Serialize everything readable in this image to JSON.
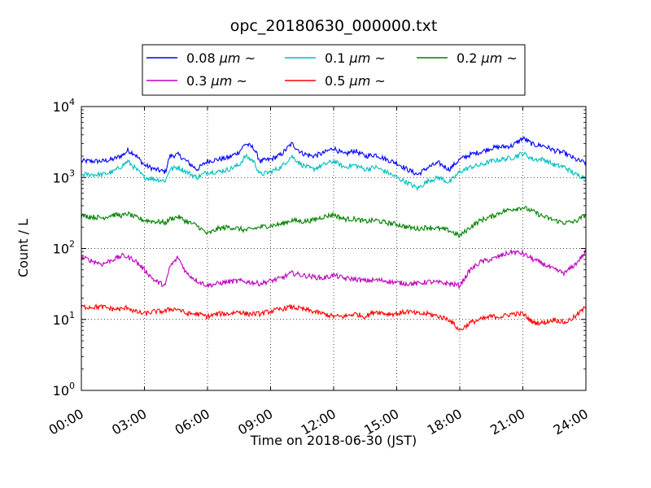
{
  "chart_data": {
    "type": "line",
    "title": "opc_20180630_000000.txt",
    "xlabel": "Time on 2018-06-30 (JST)",
    "ylabel": "Count / L",
    "x_ticks": [
      "00:00",
      "03:00",
      "06:00",
      "09:00",
      "12:00",
      "15:00",
      "18:00",
      "21:00",
      "24:00"
    ],
    "y_ticks": [
      {
        "value": 1,
        "base": "10",
        "exp": "0"
      },
      {
        "value": 10,
        "base": "10",
        "exp": "1"
      },
      {
        "value": 100,
        "base": "10",
        "exp": "2"
      },
      {
        "value": 1000,
        "base": "10",
        "exp": "3"
      },
      {
        "value": 10000,
        "base": "10",
        "exp": "4"
      }
    ],
    "xlim_hours": [
      0,
      24
    ],
    "ylim": [
      1,
      10000
    ],
    "yscale": "log",
    "grid": true,
    "legend_position": "top",
    "series": [
      {
        "name": "0.08 μm ~",
        "label_main": "0.08 ",
        "label_unit": "μm",
        "label_tail": " ~",
        "color": "#0000ff",
        "x": [
          0,
          1,
          1.5,
          2,
          2.2,
          2.5,
          3,
          3.5,
          4,
          4.2,
          4.6,
          5,
          5.5,
          6,
          6.5,
          7,
          7.5,
          7.8,
          8.2,
          8.5,
          9,
          9.5,
          10,
          10.5,
          11,
          11.5,
          12,
          12.5,
          13,
          13.5,
          14,
          14.5,
          15,
          15.5,
          16,
          16.5,
          17,
          17.5,
          18,
          18.5,
          19,
          19.5,
          20,
          20.5,
          21,
          21.5,
          22,
          22.5,
          23,
          23.5,
          24
        ],
        "y": [
          1700,
          1700,
          1800,
          2100,
          2400,
          2200,
          1500,
          1300,
          1200,
          2000,
          2100,
          1700,
          1300,
          1700,
          1800,
          1900,
          2300,
          3000,
          2600,
          1700,
          1800,
          2100,
          3000,
          2200,
          2000,
          2200,
          2600,
          2100,
          2400,
          2000,
          2100,
          1800,
          1600,
          1300,
          1100,
          1400,
          1600,
          1300,
          1800,
          2100,
          2300,
          2600,
          2700,
          2800,
          3600,
          2900,
          2800,
          2400,
          2200,
          1800,
          1600
        ]
      },
      {
        "name": "0.1 μm ~",
        "label_main": "0.1 ",
        "label_unit": "μm",
        "label_tail": " ~",
        "color": "#00bfbf",
        "x": [
          0,
          1,
          1.5,
          2,
          2.2,
          2.5,
          3,
          3.5,
          4,
          4.2,
          4.6,
          5,
          5.5,
          6,
          6.5,
          7,
          7.5,
          7.8,
          8.2,
          8.5,
          9,
          9.5,
          10,
          10.5,
          11,
          11.5,
          12,
          12.5,
          13,
          13.5,
          14,
          14.5,
          15,
          15.5,
          16,
          16.5,
          17,
          17.5,
          18,
          18.5,
          19,
          19.5,
          20,
          20.5,
          21,
          21.5,
          22,
          22.5,
          23,
          23.5,
          24
        ],
        "y": [
          1100,
          1100,
          1200,
          1500,
          1700,
          1400,
          1000,
          950,
          900,
          1300,
          1400,
          1200,
          1000,
          1200,
          1200,
          1300,
          1500,
          2000,
          1700,
          1100,
          1200,
          1400,
          2000,
          1500,
          1300,
          1500,
          1700,
          1400,
          1500,
          1300,
          1400,
          1200,
          1000,
          850,
          700,
          900,
          1000,
          850,
          1200,
          1400,
          1500,
          1700,
          1800,
          1900,
          2200,
          1800,
          1800,
          1500,
          1400,
          1100,
          1000
        ]
      },
      {
        "name": "0.2 μm ~",
        "label_main": "0.2 ",
        "label_unit": "μm",
        "label_tail": " ~",
        "color": "#008000",
        "x": [
          0,
          1,
          1.5,
          2,
          2.2,
          2.5,
          3,
          3.5,
          4,
          4.2,
          4.6,
          5,
          5.5,
          6,
          6.5,
          7,
          7.5,
          7.8,
          8.2,
          8.5,
          9,
          9.5,
          10,
          10.5,
          11,
          11.5,
          12,
          12.5,
          13,
          13.5,
          14,
          14.5,
          15,
          15.5,
          16,
          16.5,
          17,
          17.5,
          18,
          18.5,
          19,
          19.5,
          20,
          20.5,
          21,
          21.5,
          22,
          22.5,
          23,
          23.5,
          24
        ],
        "y": [
          290,
          270,
          300,
          290,
          310,
          280,
          250,
          240,
          230,
          260,
          280,
          240,
          210,
          160,
          190,
          200,
          190,
          180,
          190,
          200,
          210,
          220,
          250,
          240,
          250,
          280,
          300,
          260,
          260,
          240,
          250,
          230,
          220,
          200,
          190,
          200,
          190,
          180,
          150,
          200,
          250,
          280,
          330,
          360,
          380,
          330,
          280,
          250,
          230,
          240,
          300
        ]
      },
      {
        "name": "0.3 μm ~",
        "label_main": "0.3 ",
        "label_unit": "μm",
        "label_tail": " ~",
        "color": "#bf00bf",
        "x": [
          0,
          1,
          1.5,
          2,
          2.2,
          2.5,
          3,
          3.5,
          4,
          4.2,
          4.6,
          5,
          5.5,
          6,
          6.5,
          7,
          7.5,
          7.8,
          8.2,
          8.5,
          9,
          9.5,
          10,
          10.5,
          11,
          11.5,
          12,
          12.5,
          13,
          13.5,
          14,
          14.5,
          15,
          15.5,
          16,
          16.5,
          17,
          17.5,
          18,
          18.5,
          19,
          19.5,
          20,
          20.5,
          21,
          21.5,
          22,
          22.5,
          23,
          23.5,
          24
        ],
        "y": [
          75,
          60,
          70,
          80,
          75,
          70,
          50,
          35,
          30,
          55,
          75,
          45,
          35,
          30,
          32,
          34,
          35,
          34,
          33,
          32,
          35,
          38,
          45,
          42,
          40,
          38,
          42,
          38,
          37,
          35,
          36,
          35,
          33,
          32,
          32,
          34,
          33,
          32,
          30,
          50,
          65,
          70,
          80,
          90,
          85,
          70,
          60,
          50,
          45,
          60,
          90
        ]
      },
      {
        "name": "0.5 μm ~",
        "label_main": "0.5 ",
        "label_unit": "μm",
        "label_tail": " ~",
        "color": "#ff0000",
        "x": [
          0,
          1,
          1.5,
          2,
          2.2,
          2.5,
          3,
          3.5,
          4,
          4.2,
          4.6,
          5,
          5.5,
          6,
          6.5,
          7,
          7.5,
          7.8,
          8.2,
          8.5,
          9,
          9.5,
          10,
          10.5,
          11,
          11.5,
          12,
          12.5,
          13,
          13.5,
          14,
          14.5,
          15,
          15.5,
          16,
          16.5,
          17,
          17.5,
          18,
          18.5,
          19,
          19.5,
          20,
          20.5,
          21,
          21.5,
          22,
          22.5,
          23,
          23.5,
          24
        ],
        "y": [
          15,
          15,
          14,
          14,
          15,
          13,
          12,
          13,
          13,
          14,
          14,
          12,
          12,
          11,
          12,
          12,
          13,
          12,
          12,
          12,
          13,
          14,
          15,
          14,
          13,
          12,
          11,
          11,
          12,
          11,
          13,
          12,
          12,
          13,
          12,
          12,
          11,
          10,
          7,
          9,
          10,
          11,
          11,
          12,
          12,
          9,
          9,
          10,
          9,
          11,
          15
        ]
      }
    ]
  }
}
